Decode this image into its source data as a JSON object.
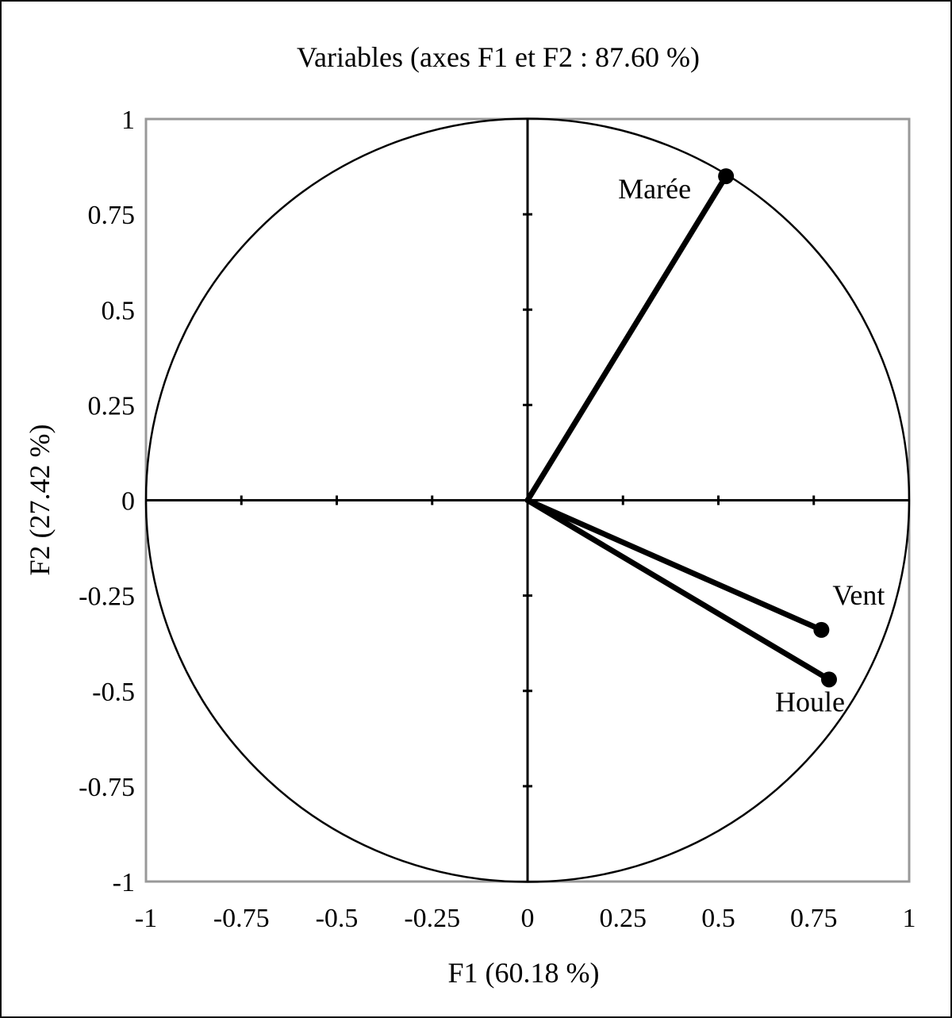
{
  "chart_data": {
    "type": "scatter",
    "title": "Variables (axes F1 et F2 : 87.60 %)",
    "xlabel": "F1 (60.18 %)",
    "ylabel": "F2 (27.42 %)",
    "xlim": [
      -1,
      1
    ],
    "ylim": [
      -1,
      1
    ],
    "x_ticks": [
      "-1",
      "-0.75",
      "-0.5",
      "-0.25",
      "0",
      "0.25",
      "0.5",
      "0.75",
      "1"
    ],
    "y_ticks": [
      "1",
      "0.75",
      "0.5",
      "0.25",
      "0",
      "-0.25",
      "-0.5",
      "-0.75",
      "-1"
    ],
    "correlation_circle": true,
    "grid": false,
    "series": [
      {
        "label": "Marée",
        "x": 0.52,
        "y": 0.85
      },
      {
        "label": "Vent",
        "x": 0.77,
        "y": -0.34
      },
      {
        "label": "Houle",
        "x": 0.79,
        "y": -0.47
      }
    ],
    "colors": {
      "frame": "#999999",
      "ink": "#000000"
    }
  }
}
